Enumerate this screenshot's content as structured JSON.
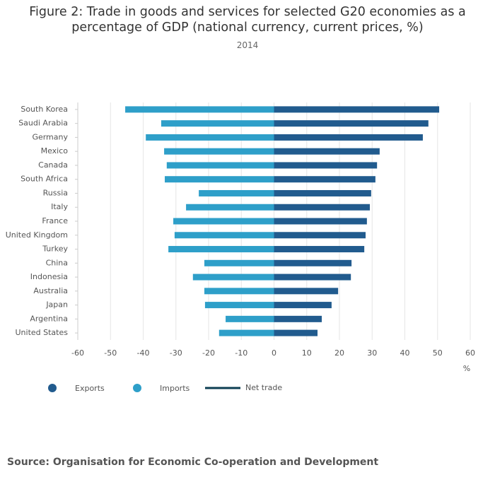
{
  "chart_data": {
    "type": "bar",
    "orientation": "horizontal",
    "stacked": false,
    "title": "Figure 2: Trade in goods and services for selected G20 economies as a percentage of GDP (national currency, current prices, %)",
    "subtitle": "2014",
    "x_label": "%",
    "source": "Source: Organisation for Economic Co-operation and Development",
    "categories": [
      "South Korea",
      "Saudi Arabia",
      "Germany",
      "Mexico",
      "Canada",
      "South Africa",
      "Russia",
      "Italy",
      "France",
      "United Kingdom",
      "Turkey",
      "China",
      "Indonesia",
      "Australia",
      "Japan",
      "Argentina",
      "United States"
    ],
    "series": [
      {
        "name": "Exports",
        "color": "#215b8e",
        "values": [
          50.5,
          47.2,
          45.5,
          32.3,
          31.5,
          31.0,
          29.7,
          29.3,
          28.4,
          28.0,
          27.6,
          23.7,
          23.5,
          19.6,
          17.6,
          14.6,
          13.3
        ]
      },
      {
        "name": "Imports",
        "color": "#2e9fc9",
        "values": [
          -45.5,
          -34.5,
          -39.2,
          -33.6,
          -32.8,
          -33.4,
          -23.0,
          -26.9,
          -30.8,
          -30.4,
          -32.3,
          -21.3,
          -24.8,
          -21.3,
          -21.1,
          -14.8,
          -16.8
        ]
      },
      {
        "name": "Net trade",
        "color": "#0b3d52",
        "legend_shape": "line",
        "values": [
          null,
          null,
          null,
          null,
          null,
          null,
          null,
          null,
          null,
          null,
          null,
          null,
          null,
          null,
          null,
          null,
          null
        ]
      }
    ],
    "xlim": [
      -60,
      60
    ],
    "xticks": [
      -60,
      -50,
      -40,
      -30,
      -20,
      -10,
      0,
      10,
      20,
      30,
      40,
      50,
      60
    ],
    "grid": true,
    "legend": "bottom-left"
  }
}
